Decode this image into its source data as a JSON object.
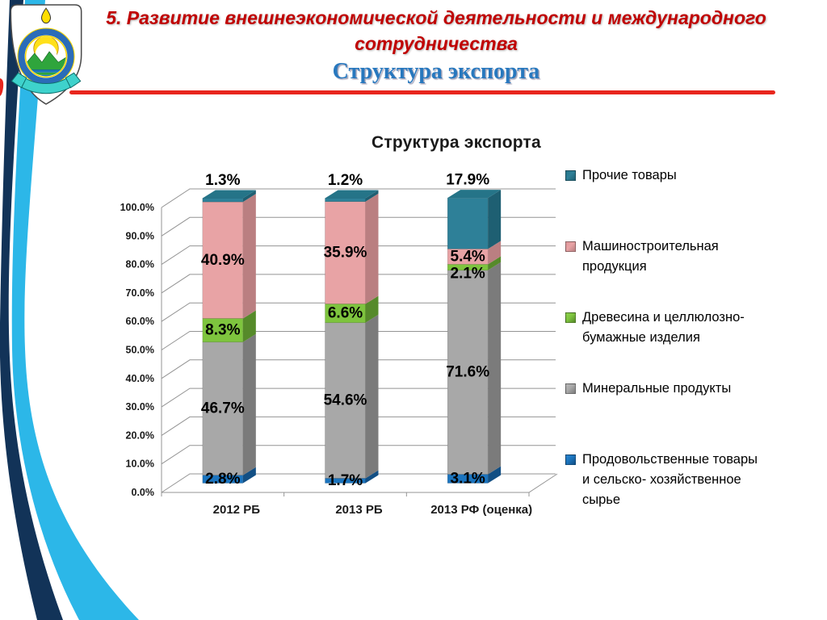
{
  "header": {
    "title_line1": "5. Развитие внешнеэкономической деятельности и международного",
    "title_line2": "сотрудничества",
    "subtitle": "Структура экспорта"
  },
  "theme": {
    "title_red": "#C00000",
    "divider_red": "#E8261D",
    "subtitle_blue": "#2878BE",
    "stripe_dark_navy": "#123358",
    "stripe_cyan": "#2CB7E8"
  },
  "chart_data": {
    "type": "bar",
    "variant": "stacked-column-3d",
    "title": "Структура экспорта",
    "categories": [
      "2012 РБ",
      "2013 РБ",
      "2013 РФ (оценка)"
    ],
    "series": [
      {
        "name": "Продовольственные товары и сельско- хозяйственное сырье",
        "color": "#1B74BE",
        "side_color": "#124F84",
        "top_color": "#2B84CE",
        "values": [
          2.8,
          1.7,
          3.1
        ]
      },
      {
        "name": "Минеральные продукты",
        "color": "#A8A8A8",
        "side_color": "#7B7B7B",
        "top_color": "#B5B5B5",
        "values": [
          46.7,
          54.6,
          71.6
        ]
      },
      {
        "name": "Древесина и целлюлозно-бумажные изделия",
        "color": "#7EC43E",
        "side_color": "#568A2A",
        "top_color": "#8CD04C",
        "values": [
          8.3,
          6.6,
          2.1
        ]
      },
      {
        "name": "Машиностроительная продукция",
        "color": "#E8A3A5",
        "side_color": "#BA7F81",
        "top_color": "#DD9598",
        "values": [
          40.9,
          35.9,
          5.4
        ]
      },
      {
        "name": "Прочие товары",
        "color": "#2E8098",
        "side_color": "#1E5F72",
        "top_color": "#257488",
        "values": [
          1.3,
          1.2,
          17.9
        ]
      }
    ],
    "value_suffix": "%",
    "value_decimals": 1,
    "y_axis": {
      "min": 0,
      "max": 100,
      "step": 10,
      "tick_labels": [
        "0.0%",
        "10.0%",
        "20.0%",
        "30.0%",
        "40.0%",
        "50.0%",
        "60.0%",
        "70.0%",
        "80.0%",
        "90.0%",
        "100.0%"
      ]
    },
    "grid": true,
    "legend_position": "right"
  }
}
